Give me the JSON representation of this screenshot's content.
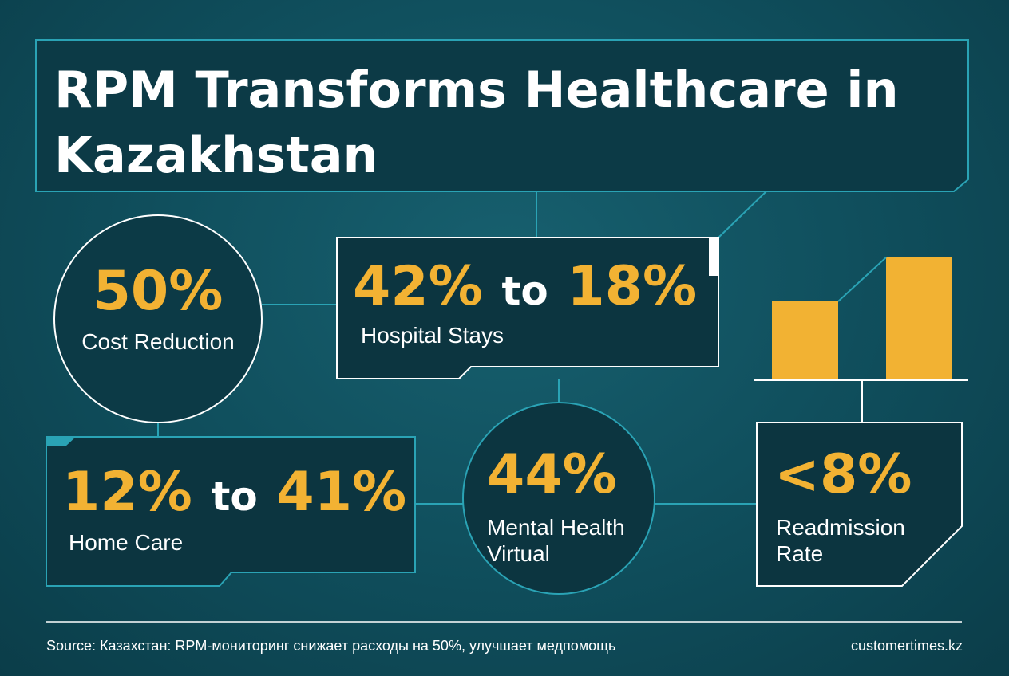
{
  "title": "RPM Transforms Healthcare in Kazakhstan",
  "stats": [
    {
      "value": "50%",
      "label": "Cost Reduction"
    },
    {
      "from": "42%",
      "joiner": "to",
      "to": "18%",
      "label": "Hospital Stays"
    },
    {
      "from": "12%",
      "joiner": "to",
      "to": "41%",
      "label": "Home Care"
    },
    {
      "value": "44%",
      "label": "Mental Health Virtual"
    },
    {
      "value": "<8%",
      "label": "Readmission Rate"
    }
  ],
  "footer": {
    "source": "Source: Казахстан: RPM-мониторинг снижает расходы на 50%, улучшает медпомощь",
    "site": "customertimes.kz"
  }
}
